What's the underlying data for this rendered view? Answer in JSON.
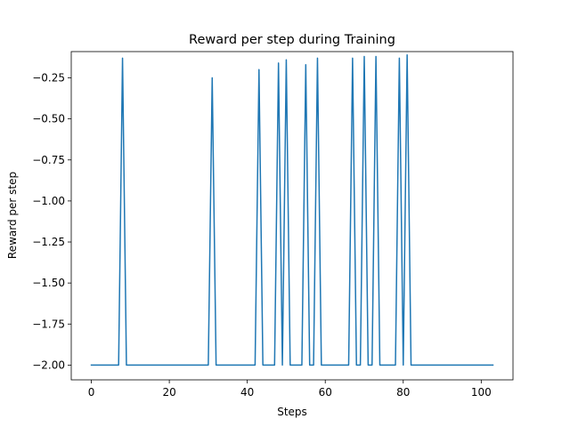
{
  "chart_data": {
    "type": "line",
    "title": "Reward per step during Training",
    "xlabel": "Steps",
    "ylabel": "Reward per step",
    "xlim": [
      -5.15,
      108.15
    ],
    "ylim": [
      -2.09,
      -0.09
    ],
    "xticks": [
      0,
      20,
      40,
      60,
      80,
      100
    ],
    "yticks": [
      -2.0,
      -1.75,
      -1.5,
      -1.25,
      -1.0,
      -0.75,
      -0.5,
      -0.25
    ],
    "ytick_labels": [
      "−2.00",
      "−1.75",
      "−1.50",
      "−1.25",
      "−1.00",
      "−0.75",
      "−0.50",
      "−0.25"
    ],
    "grid": false,
    "line_color": "#1f77b4",
    "series": [
      {
        "x": [
          0,
          7,
          8,
          9,
          30,
          31,
          32,
          42,
          43,
          44,
          47,
          48,
          49,
          50,
          51,
          54,
          55,
          56,
          57,
          58,
          59,
          66,
          67,
          68,
          69,
          70,
          71,
          72,
          73,
          74,
          78,
          79,
          80,
          81,
          82,
          103
        ],
        "y": [
          -2.0,
          -2.0,
          -0.13,
          -2.0,
          -2.0,
          -0.25,
          -2.0,
          -2.0,
          -0.2,
          -2.0,
          -2.0,
          -0.16,
          -2.0,
          -0.14,
          -2.0,
          -2.0,
          -0.17,
          -2.0,
          -2.0,
          -0.13,
          -2.0,
          -2.0,
          -0.13,
          -2.0,
          -2.0,
          -0.12,
          -2.0,
          -2.0,
          -0.12,
          -2.0,
          -2.0,
          -0.13,
          -2.0,
          -0.11,
          -2.0,
          -2.0
        ]
      }
    ]
  }
}
